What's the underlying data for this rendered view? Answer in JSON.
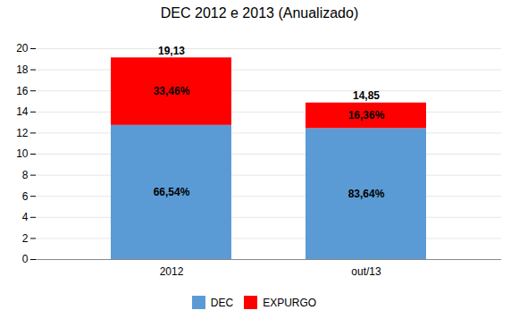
{
  "chart_data": {
    "type": "bar",
    "stacked": true,
    "title": "DEC 2012 e 2013 (Anualizado)",
    "categories": [
      "2012",
      "out/13"
    ],
    "series": [
      {
        "name": "DEC",
        "color": "#5B9BD5",
        "values": [
          12.7264,
          12.4231
        ],
        "shares": [
          66.54,
          83.64
        ],
        "share_labels": [
          "66,54%",
          "83,64%"
        ]
      },
      {
        "name": "EXPURGO",
        "color": "#FF0000",
        "values": [
          6.4036,
          2.4269
        ],
        "shares": [
          33.46,
          16.36
        ],
        "share_labels": [
          "33,46%",
          "16,36%"
        ]
      }
    ],
    "totals": [
      19.13,
      14.85
    ],
    "total_labels": [
      "19,13",
      "14,85"
    ],
    "ylim": [
      0,
      20
    ],
    "yticks": [
      0,
      2,
      4,
      6,
      8,
      10,
      12,
      14,
      16,
      18,
      20
    ],
    "grid": true,
    "legend": "bottom"
  }
}
